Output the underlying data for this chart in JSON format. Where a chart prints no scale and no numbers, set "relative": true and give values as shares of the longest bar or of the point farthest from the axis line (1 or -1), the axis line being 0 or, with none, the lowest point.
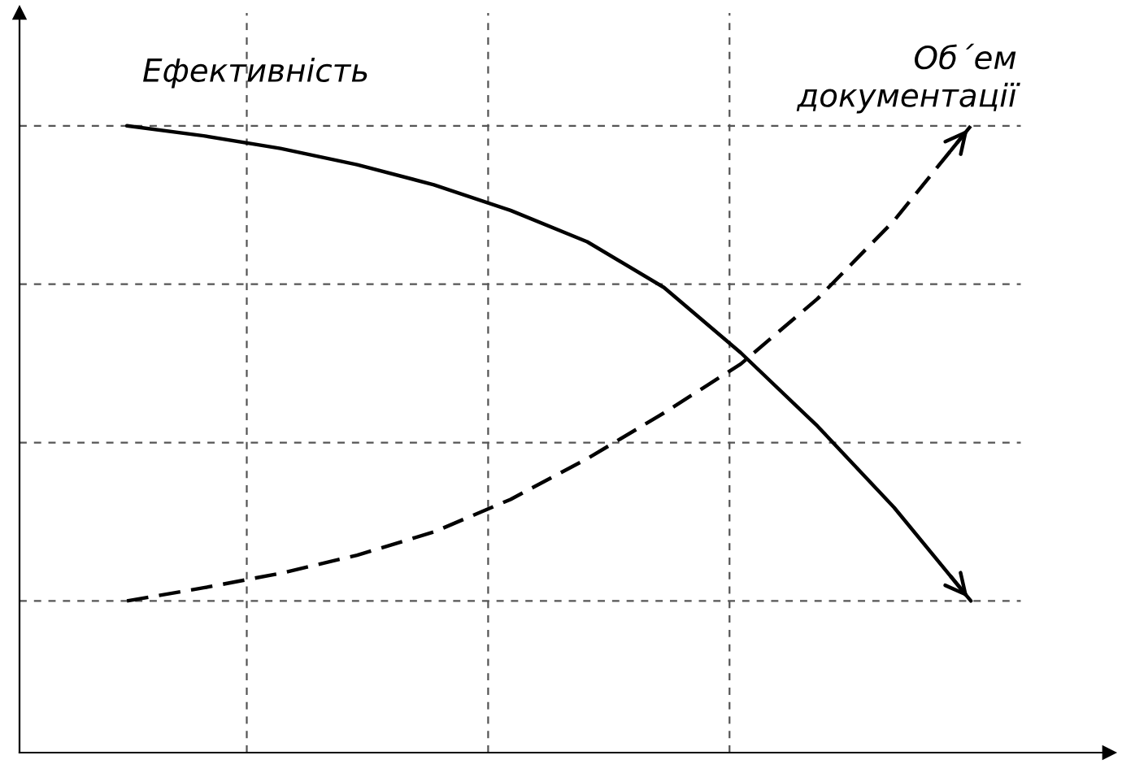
{
  "chart_data": {
    "type": "line",
    "relative": true,
    "grid": true,
    "categories": [
      null,
      null,
      null,
      null,
      null,
      null,
      null,
      null,
      null,
      null,
      null,
      null
    ],
    "series": [
      {
        "name": "Ефективність",
        "color": "#000000",
        "line_style": "solid",
        "values": [
          1,
          0.984,
          0.964,
          0.938,
          0.906,
          0.865,
          0.815,
          0.742,
          0.638,
          0.521,
          0.391,
          0.242
        ]
      },
      {
        "name": "Об´ем\nдокументації",
        "color": "#000000",
        "line_style": "dashed",
        "values": [
          0.242,
          0.263,
          0.286,
          0.315,
          0.352,
          0.404,
          0.469,
          0.542,
          0.62,
          0.724,
          0.849,
          1
        ]
      }
    ]
  }
}
